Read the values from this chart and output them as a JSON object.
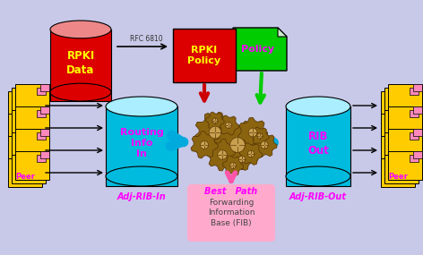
{
  "bg_color": "#c8c8e8",
  "rpki_data_color": "#dd0000",
  "rpki_data_text": "RPKI\nData",
  "rpki_data_text_color": "#ffff00",
  "rpki_policy_color": "#dd0000",
  "rpki_policy_text": "RPKI\nPolicy",
  "rpki_policy_text_color": "#ffff00",
  "policy_color": "#00cc00",
  "policy_text": "Policy",
  "policy_text_color": "#ff00ff",
  "routing_color": "#00bbdd",
  "routing_text": "Routing\nInfo\nIn",
  "routing_text_color": "#ff00ff",
  "rib_color": "#00bbdd",
  "rib_text": "RIB\nOut",
  "rib_text_color": "#ff00ff",
  "fib_color": "#ffaacc",
  "fib_text": "Forwarding\nInformation\nBase (FIB)",
  "fib_text_color": "#444444",
  "peer_color": "#ffcc00",
  "peer_text_color": "#ff00ff",
  "adj_rib_in": "Adj-RIB-In",
  "adj_rib_out": "Adj-RIB-Out",
  "best_path": "Best   Path",
  "rfc_text": "RFC 6810",
  "label_color": "#ff00ff",
  "arrow_cyan": "#00aadd",
  "arrow_red": "#cc0000",
  "arrow_green": "#00cc00",
  "arrow_pink": "#ff55aa",
  "gear_color": "#8B6410",
  "gear_edge": "#5a3a05"
}
